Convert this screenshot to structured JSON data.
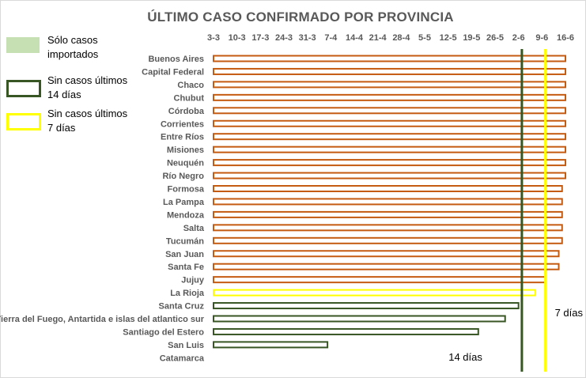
{
  "legend": {
    "items": [
      {
        "line1": "Sólo casos",
        "line2": "importados",
        "style": "fill",
        "color": "#c6e0b4"
      },
      {
        "line1": "Sin casos últimos",
        "line2": "14 días",
        "style": "outline",
        "color": "#375623"
      },
      {
        "line1": "Sin casos últimos",
        "line2": "7 días",
        "style": "outline",
        "color": "#ffff00"
      }
    ]
  },
  "colors": {
    "bar_outline": "#c55a11",
    "fourteen_days": "#375623",
    "seven_days": "#ffff00",
    "imported_fill": "#c6e0b4"
  },
  "chart_data": {
    "type": "bar",
    "orientation": "horizontal",
    "title": "ÚLTIMO CASO CONFIRMADO POR PROVINCIA",
    "xlabel": "",
    "ylabel": "",
    "x_axis_position": "top",
    "x_ticks": [
      "3-3",
      "10-3",
      "17-3",
      "24-3",
      "31-3",
      "7-4",
      "14-4",
      "21-4",
      "28-4",
      "5-5",
      "12-5",
      "19-5",
      "26-5",
      "2-6",
      "9-6",
      "16-6"
    ],
    "x_range": [
      "3-3",
      "16-6"
    ],
    "grid": false,
    "categories": [
      "Buenos Aires",
      "Capital Federal",
      "Chaco",
      "Chubut",
      "Córdoba",
      "Corrientes",
      "Entre Ríos",
      "Misiones",
      "Neuquén",
      "Río Negro",
      "Formosa",
      "La Pampa",
      "Mendoza",
      "Salta",
      "Tucumán",
      "San Juan",
      "Santa Fe",
      "Jujuy",
      "La Rioja",
      "Santa Cruz",
      "Tierra del Fuego, Antartida e islas del atlantico sur",
      "Santiago del Estero",
      "San Luis",
      "Catamarca"
    ],
    "values": [
      "16-6",
      "16-6",
      "16-6",
      "16-6",
      "16-6",
      "16-6",
      "16-6",
      "16-6",
      "16-6",
      "16-6",
      "15-6",
      "15-6",
      "15-6",
      "15-6",
      "15-6",
      "14-6",
      "14-6",
      "10-6",
      "7-6",
      "2-6",
      "29-5",
      "21-5",
      "6-4",
      null
    ],
    "status": [
      "reciente",
      "reciente",
      "reciente",
      "reciente",
      "reciente",
      "reciente",
      "reciente",
      "reciente",
      "reciente",
      "reciente",
      "reciente",
      "reciente",
      "reciente",
      "reciente",
      "reciente",
      "reciente",
      "reciente",
      "reciente",
      "sin casos 7 días",
      "sin casos 14 días",
      "sin casos 14 días",
      "sin casos 14 días",
      "sin casos 14 días",
      "sin casos"
    ],
    "reference_lines": [
      {
        "label": "14 días",
        "date": "3-6",
        "color": "#375623"
      },
      {
        "label": "7 días",
        "date": "10-6",
        "color": "#ffff00"
      }
    ]
  }
}
